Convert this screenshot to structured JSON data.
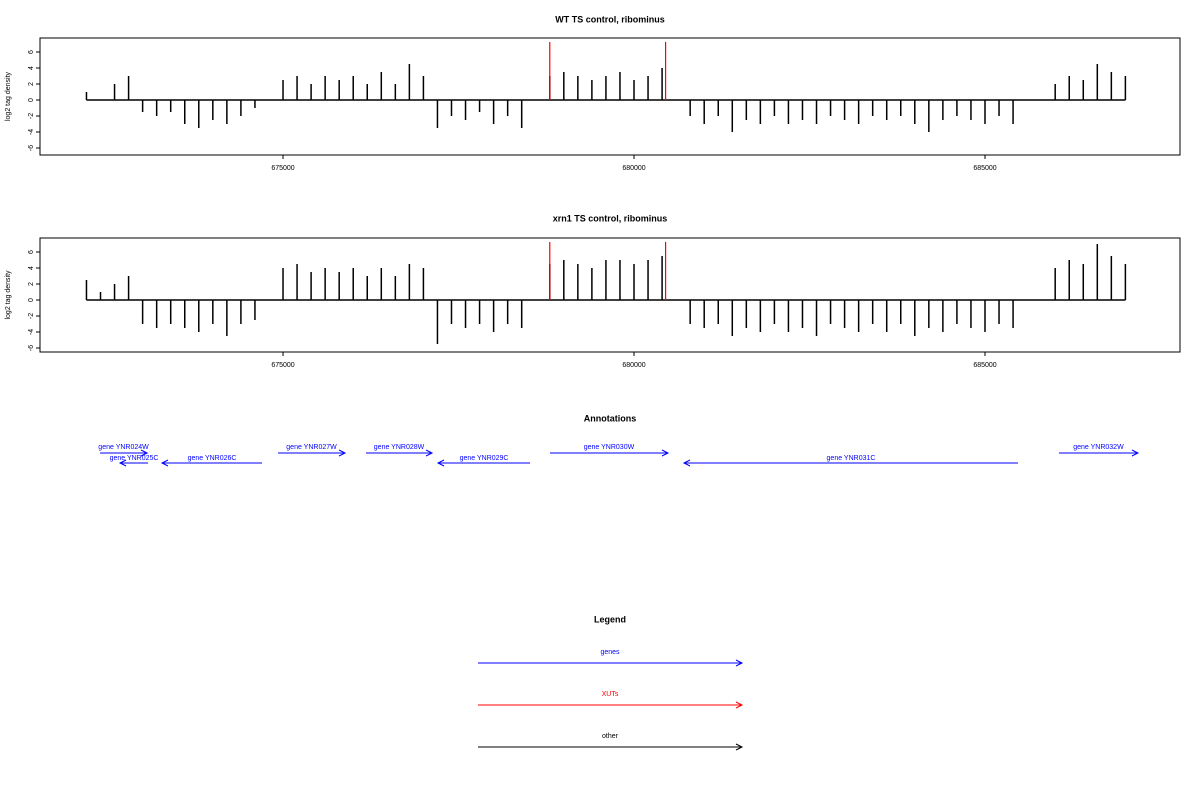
{
  "chart_data": [
    {
      "type": "bar",
      "title": "WT TS control, ribominus",
      "y_label": "log2 tag density",
      "color": "#000000",
      "xlim": [
        671538,
        687778
      ],
      "ylim": [
        -6.875,
        7.75
      ],
      "xticks": [
        675000,
        680000,
        685000
      ],
      "yticks": [
        -6,
        -4,
        -2,
        0,
        2,
        4,
        6
      ],
      "highlights": [
        678800,
        680450
      ],
      "highlight_color": "#ff0000",
      "x": [
        672200,
        672400,
        672600,
        672800,
        673000,
        673200,
        673400,
        673600,
        673800,
        674000,
        674200,
        674400,
        674600,
        674800,
        675000,
        675200,
        675400,
        675600,
        675800,
        676000,
        676200,
        676400,
        676600,
        676800,
        677000,
        677200,
        677400,
        677600,
        677800,
        678000,
        678200,
        678400,
        678600,
        678800,
        679000,
        679200,
        679400,
        679600,
        679800,
        680000,
        680200,
        680400,
        680600,
        680800,
        681000,
        681200,
        681400,
        681600,
        681800,
        682000,
        682200,
        682400,
        682600,
        682800,
        683000,
        683200,
        683400,
        683600,
        683800,
        684000,
        684200,
        684400,
        684600,
        684800,
        685000,
        685200,
        685400,
        685600,
        685800,
        686000,
        686200,
        686400,
        686600,
        686800,
        687000
      ],
      "values": [
        1,
        0,
        2,
        3,
        -1.5,
        -2,
        -1.5,
        -3,
        -3.5,
        -2.5,
        -3,
        -2,
        -1,
        0,
        2.5,
        3,
        2,
        3,
        2.5,
        3,
        2,
        3.5,
        2,
        4.5,
        3,
        -3.5,
        -2,
        -2.5,
        -1.5,
        -3,
        -2,
        -3.5,
        0,
        3,
        3.5,
        3,
        2.5,
        3,
        3.5,
        2.5,
        3,
        4,
        0,
        -2,
        -3,
        -2,
        -4,
        -2.5,
        -3,
        -2,
        -3,
        -2.5,
        -3,
        -2,
        -2.5,
        -3,
        -2,
        -2.5,
        -2,
        -3,
        -4,
        -2.5,
        -2,
        -2.5,
        -3,
        -2,
        -3,
        0,
        0,
        2,
        3,
        2.5,
        4.5,
        3.5,
        3
      ]
    },
    {
      "type": "bar",
      "title": "xrn1 TS control, ribominus",
      "y_label": "log2 tag density",
      "color": "#000000",
      "xlim": [
        671538,
        687778
      ],
      "ylim": [
        -6.5,
        7.75
      ],
      "xticks": [
        675000,
        680000,
        685000
      ],
      "yticks": [
        -6,
        -4,
        -2,
        0,
        2,
        4,
        6
      ],
      "highlights": [
        678800,
        680450
      ],
      "highlight_color": "#ff0000",
      "x": [
        672200,
        672400,
        672600,
        672800,
        673000,
        673200,
        673400,
        673600,
        673800,
        674000,
        674200,
        674400,
        674600,
        674800,
        675000,
        675200,
        675400,
        675600,
        675800,
        676000,
        676200,
        676400,
        676600,
        676800,
        677000,
        677200,
        677400,
        677600,
        677800,
        678000,
        678200,
        678400,
        678600,
        678800,
        679000,
        679200,
        679400,
        679600,
        679800,
        680000,
        680200,
        680400,
        680600,
        680800,
        681000,
        681200,
        681400,
        681600,
        681800,
        682000,
        682200,
        682400,
        682600,
        682800,
        683000,
        683200,
        683400,
        683600,
        683800,
        684000,
        684200,
        684400,
        684600,
        684800,
        685000,
        685200,
        685400,
        685600,
        685800,
        686000,
        686200,
        686400,
        686600,
        686800,
        687000
      ],
      "values": [
        2.5,
        1,
        2,
        3,
        -3,
        -3.5,
        -3,
        -3.5,
        -4,
        -3,
        -4.5,
        -3,
        -2.5,
        0,
        4,
        4.5,
        3.5,
        4,
        3.5,
        4,
        3,
        4,
        3,
        4.5,
        4,
        -5.5,
        -3,
        -3.5,
        -3,
        -4,
        -3,
        -3.5,
        0,
        4.5,
        5,
        4.5,
        4,
        5,
        5,
        4.5,
        5,
        5.5,
        0,
        -3,
        -3.5,
        -3,
        -4.5,
        -3.5,
        -4,
        -3,
        -4,
        -3.5,
        -4.5,
        -3,
        -3.5,
        -4,
        -3,
        -4,
        -3,
        -4.5,
        -3.5,
        -4,
        -3,
        -3.5,
        -4,
        -3,
        -3.5,
        0,
        0,
        4,
        5,
        4.5,
        7,
        5.5,
        4.5
      ]
    },
    {
      "type": "annotation",
      "title": "Annotations",
      "color": "#0000ff",
      "xlim": [
        671538,
        687778
      ],
      "genes": [
        {
          "label": "gene YNR024W",
          "start": 672393,
          "end": 673063,
          "strand": "W"
        },
        {
          "label": "gene YNR025C",
          "start": 672678,
          "end": 673077,
          "strand": "C"
        },
        {
          "label": "gene YNR026C",
          "start": 673276,
          "end": 674701,
          "strand": "C"
        },
        {
          "label": "gene YNR027W",
          "start": 674929,
          "end": 675883,
          "strand": "W"
        },
        {
          "label": "gene YNR028W",
          "start": 676182,
          "end": 677123,
          "strand": "W"
        },
        {
          "label": "gene YNR029C",
          "start": 677208,
          "end": 678519,
          "strand": "C"
        },
        {
          "label": "gene YNR030W",
          "start": 678803,
          "end": 680484,
          "strand": "W"
        },
        {
          "label": "gene YNR031C",
          "start": 680712,
          "end": 685470,
          "strand": "C"
        },
        {
          "label": "gene YNR032W",
          "start": 686054,
          "end": 687179,
          "strand": "W"
        }
      ]
    }
  ],
  "legend": {
    "title": "Legend",
    "items": [
      {
        "label": "genes",
        "color": "#0000ff"
      },
      {
        "label": "XUTs",
        "color": "#ff0000"
      },
      {
        "label": "other",
        "color": "#000000"
      }
    ]
  }
}
